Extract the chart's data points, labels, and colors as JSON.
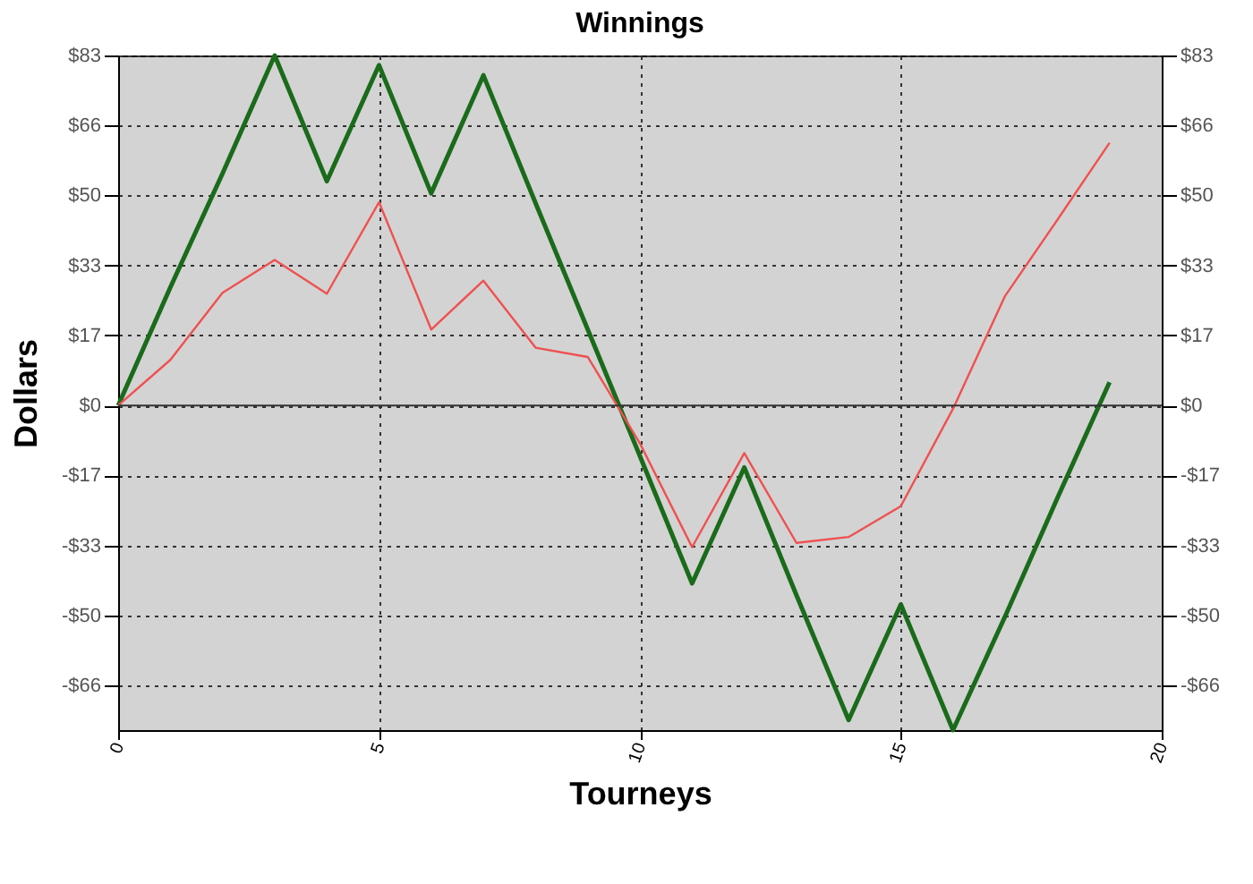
{
  "chart_data": {
    "type": "line",
    "title": "Winnings",
    "xlabel": "Tourneys",
    "ylabel": "Dollars",
    "x": [
      0,
      1,
      2,
      3,
      4,
      5,
      6,
      7,
      8,
      9,
      10,
      11,
      12,
      13,
      14,
      15,
      16,
      17,
      18,
      19
    ],
    "series": [
      {
        "color": "#1a6b1a",
        "values": [
          0,
          28,
          55,
          83,
          53.2,
          80.7,
          50.3,
          78.3,
          48,
          18,
          -12,
          -42.2,
          -14.7,
          -45,
          -74.6,
          -47.2,
          -77,
          -50,
          -22,
          5.5
        ]
      },
      {
        "color": "#f05050",
        "values": [
          0,
          10.8,
          26.7,
          34.5,
          26.5,
          48.2,
          18,
          29.6,
          13.7,
          11.5,
          -9,
          -33.6,
          -11.3,
          -32.6,
          -31.2,
          -23.9,
          -0.8,
          26,
          44,
          62.3
        ]
      }
    ],
    "xlim": [
      0,
      20
    ],
    "xticks": [
      0,
      5,
      10,
      15,
      20
    ],
    "ylim": [
      -77,
      83
    ],
    "yticks": [
      {
        "value": -66.4,
        "label": "-$66"
      },
      {
        "value": -49.8,
        "label": "-$50"
      },
      {
        "value": -33.2,
        "label": "-$33"
      },
      {
        "value": -16.6,
        "label": "-$17"
      },
      {
        "value": 0,
        "label": "$0"
      },
      {
        "value": 16.6,
        "label": "$17"
      },
      {
        "value": 33.2,
        "label": "$33"
      },
      {
        "value": 49.8,
        "label": "$50"
      },
      {
        "value": 66.4,
        "label": "$66"
      },
      {
        "value": 83,
        "label": "$83"
      }
    ],
    "y2lim": [
      -77,
      83
    ],
    "y2ticks": [
      {
        "value": -66.4,
        "label": "-$66"
      },
      {
        "value": -49.8,
        "label": "-$50"
      },
      {
        "value": -33.2,
        "label": "-$33"
      },
      {
        "value": -16.6,
        "label": "-$17"
      },
      {
        "value": 0,
        "label": "$0"
      },
      {
        "value": 16.6,
        "label": "$17"
      },
      {
        "value": 33.2,
        "label": "$33"
      },
      {
        "value": 49.8,
        "label": "$50"
      },
      {
        "value": 66.4,
        "label": "$66"
      },
      {
        "value": 83,
        "label": "$83"
      }
    ],
    "ref_lines": [
      {
        "axis": "y",
        "value": 0,
        "color": "#333333"
      }
    ],
    "grid": true,
    "marker": "none",
    "line_style": "solid"
  }
}
